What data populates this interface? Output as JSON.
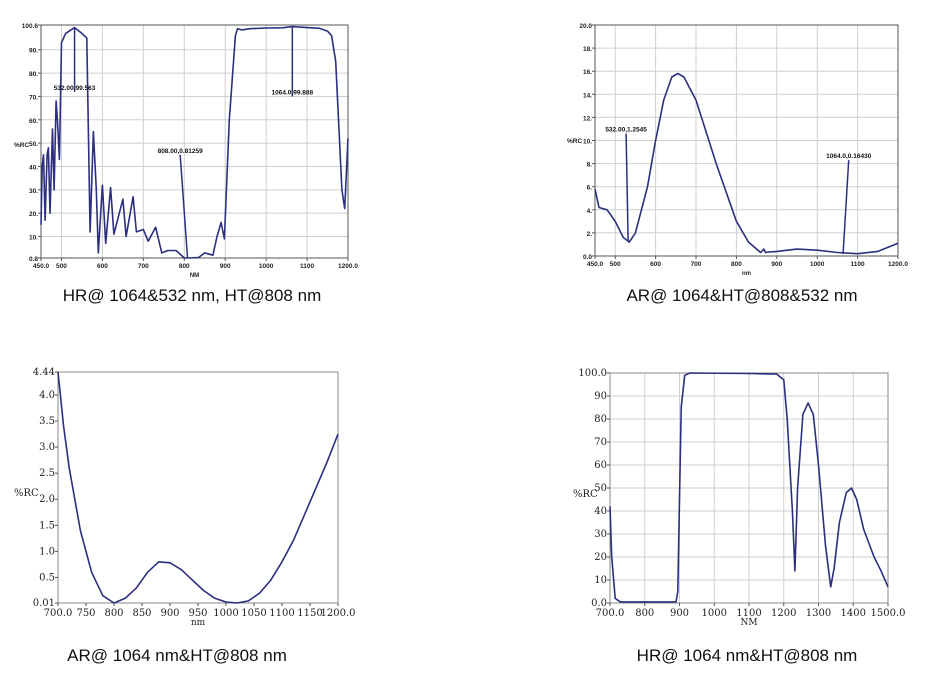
{
  "chart_data": [
    {
      "type": "line",
      "title": "HR@ 1064&532 nm, HT@808 nm",
      "xlabel": "NM",
      "ylabel": "%RC",
      "xlim": [
        450,
        1200
      ],
      "ylim": [
        0.8,
        100.6
      ],
      "grid": true,
      "xticks": [
        450,
        500,
        600,
        700,
        800,
        900,
        1000,
        1100,
        1200
      ],
      "xtick_labels": [
        "450.0",
        "500",
        "600",
        "700",
        "800",
        "900",
        "1000",
        "1100",
        "1200.0"
      ],
      "yticks": [
        0.8,
        10,
        20,
        30,
        40,
        50,
        60,
        70,
        80,
        90,
        100.6
      ],
      "ytick_labels": [
        "0.8",
        "10.",
        "20.",
        "30.",
        "40.",
        "50.",
        "60.",
        "70.",
        "80.",
        "90.",
        "100.6"
      ],
      "series": [
        {
          "name": "%RC",
          "color": "#2b2f7e",
          "x": [
            450,
            453,
            456,
            460,
            465,
            468,
            472,
            478,
            482,
            487,
            490,
            495,
            500,
            510,
            532,
            550,
            562,
            570,
            578,
            585,
            590,
            600,
            608,
            620,
            628,
            650,
            658,
            675,
            683,
            700,
            712,
            730,
            745,
            760,
            780,
            800,
            808,
            835,
            850,
            870,
            880,
            890,
            898,
            910,
            925,
            930,
            940,
            960,
            1000,
            1040,
            1064,
            1100,
            1130,
            1150,
            1160,
            1170,
            1185,
            1192,
            1200
          ],
          "y": [
            15,
            40,
            45,
            17,
            45,
            48,
            20,
            56,
            30,
            68,
            60,
            43,
            93,
            97,
            99.5,
            97,
            95,
            12,
            55,
            30,
            3,
            32,
            7,
            31,
            11,
            26,
            10,
            27,
            12,
            13,
            8,
            14,
            3,
            4,
            4,
            0.8,
            0.8,
            1,
            3,
            2,
            10,
            16,
            9,
            60,
            96,
            99,
            98.5,
            99,
            99.3,
            99.4,
            99.9,
            99.5,
            99.2,
            98,
            96,
            85,
            30,
            22,
            52
          ]
        }
      ],
      "annotations": [
        {
          "text": "532.00,99.563",
          "x": 532,
          "y": 99.563,
          "label_x": 532,
          "label_y": 72
        },
        {
          "text": "808.00,0.81259",
          "x": 808,
          "y": 0.81259,
          "label_x": 790,
          "label_y": 45
        },
        {
          "text": "1064.0,99.888",
          "x": 1064,
          "y": 99.888,
          "label_x": 1064,
          "label_y": 70
        }
      ]
    },
    {
      "type": "line",
      "title": "AR@ 1064&HT@808&532 nm",
      "xlabel": "nm",
      "ylabel": "%RC",
      "xlim": [
        450,
        1200
      ],
      "ylim": [
        0,
        20
      ],
      "grid": true,
      "xticks": [
        450,
        500,
        600,
        700,
        800,
        900,
        1000,
        1100,
        1200
      ],
      "xtick_labels": [
        "450.0",
        "500",
        "600",
        "700",
        "800",
        "900",
        "1000",
        "1100",
        "1200.0"
      ],
      "yticks": [
        0,
        2,
        4,
        6,
        8,
        10,
        12,
        14,
        16,
        18,
        20
      ],
      "ytick_labels": [
        "0.0",
        "2.",
        "4.",
        "6.",
        "8.",
        "10.",
        "12.",
        "14.",
        "16.",
        "18.",
        "20.0"
      ],
      "series": [
        {
          "name": "%RC",
          "color": "#2b2f7e",
          "x": [
            450,
            460,
            480,
            500,
            520,
            535,
            550,
            580,
            600,
            620,
            640,
            655,
            670,
            700,
            750,
            800,
            830,
            860,
            868,
            872,
            880,
            900,
            950,
            1000,
            1050,
            1100,
            1150,
            1200
          ],
          "y": [
            5.8,
            4.2,
            4,
            3,
            1.6,
            1.2,
            2,
            6,
            10,
            13.5,
            15.5,
            15.8,
            15.5,
            13.5,
            8,
            3,
            1.2,
            0.3,
            0.6,
            0.3,
            0.35,
            0.4,
            0.6,
            0.5,
            0.3,
            0.2,
            0.4,
            1.1
          ]
        }
      ],
      "annotations": [
        {
          "text": "532.00,1.2545",
          "x": 532,
          "y": 1.2545,
          "label_x": 527,
          "label_y": 10.6
        },
        {
          "text": "1064.0,0.16430",
          "x": 1064,
          "y": 0.1643,
          "label_x": 1078,
          "label_y": 8.3
        }
      ]
    },
    {
      "type": "line",
      "title": "AR@ 1064 nm&HT@808 nm",
      "xlabel": "nm",
      "ylabel": "%RC",
      "xlim": [
        700,
        1200
      ],
      "ylim": [
        0.01,
        4.44
      ],
      "grid": false,
      "xticks": [
        700,
        750,
        800,
        850,
        900,
        950,
        1000,
        1050,
        1100,
        1150,
        1200
      ],
      "xtick_labels": [
        "700.0",
        "750",
        "800",
        "850",
        "900",
        "950",
        "1000",
        "1050",
        "1100",
        "1150",
        "1200.0"
      ],
      "yticks": [
        0.01,
        0.5,
        1.0,
        1.5,
        2.0,
        2.5,
        3.0,
        3.5,
        4.0,
        4.44
      ],
      "ytick_labels": [
        "0.01",
        "0.5",
        "1.0",
        "1.5",
        "2.0",
        "2.5",
        "3.0",
        "3.5",
        "4.0",
        "4.44"
      ],
      "series": [
        {
          "name": "%RC",
          "color": "#2b2f7e",
          "x": [
            700,
            710,
            720,
            740,
            760,
            780,
            800,
            820,
            840,
            860,
            880,
            900,
            920,
            940,
            960,
            980,
            1000,
            1020,
            1040,
            1060,
            1080,
            1100,
            1120,
            1140,
            1160,
            1180,
            1200
          ],
          "y": [
            4.44,
            3.4,
            2.6,
            1.4,
            0.6,
            0.15,
            0.01,
            0.1,
            0.3,
            0.6,
            0.8,
            0.78,
            0.65,
            0.45,
            0.25,
            0.1,
            0.03,
            0.01,
            0.05,
            0.2,
            0.45,
            0.8,
            1.2,
            1.7,
            2.2,
            2.7,
            3.25
          ]
        }
      ],
      "annotations": []
    },
    {
      "type": "line",
      "title": "HR@ 1064 nm&HT@808 nm",
      "xlabel": "NM",
      "ylabel": "%RC",
      "xlim": [
        700,
        1500
      ],
      "ylim": [
        0,
        100
      ],
      "grid": true,
      "xticks": [
        700,
        800,
        900,
        1000,
        1100,
        1200,
        1300,
        1400,
        1500
      ],
      "xtick_labels": [
        "700.0",
        "800",
        "900",
        "1000",
        "1100",
        "1200",
        "1300",
        "1400",
        "1500.0"
      ],
      "yticks": [
        0,
        10,
        20,
        30,
        40,
        50,
        60,
        70,
        80,
        90,
        100
      ],
      "ytick_labels": [
        "0.0",
        "10",
        "20",
        "30",
        "40",
        "50",
        "60",
        "70",
        "80",
        "90",
        "100.0"
      ],
      "series": [
        {
          "name": "%RC",
          "color": "#2b2f7e",
          "x": [
            700,
            705,
            715,
            730,
            890,
            895,
            905,
            915,
            930,
            1100,
            1180,
            1200,
            1210,
            1225,
            1232,
            1240,
            1255,
            1270,
            1285,
            1300,
            1320,
            1335,
            1345,
            1360,
            1380,
            1395,
            1410,
            1430,
            1460,
            1480,
            1500
          ],
          "y": [
            42,
            20,
            2,
            0.5,
            0.5,
            5,
            85,
            99,
            100,
            99.8,
            99.5,
            97,
            80,
            40,
            14,
            50,
            82,
            87,
            82,
            60,
            25,
            7,
            15,
            35,
            48,
            50,
            45,
            32,
            20,
            14,
            7
          ]
        }
      ],
      "annotations": []
    }
  ]
}
